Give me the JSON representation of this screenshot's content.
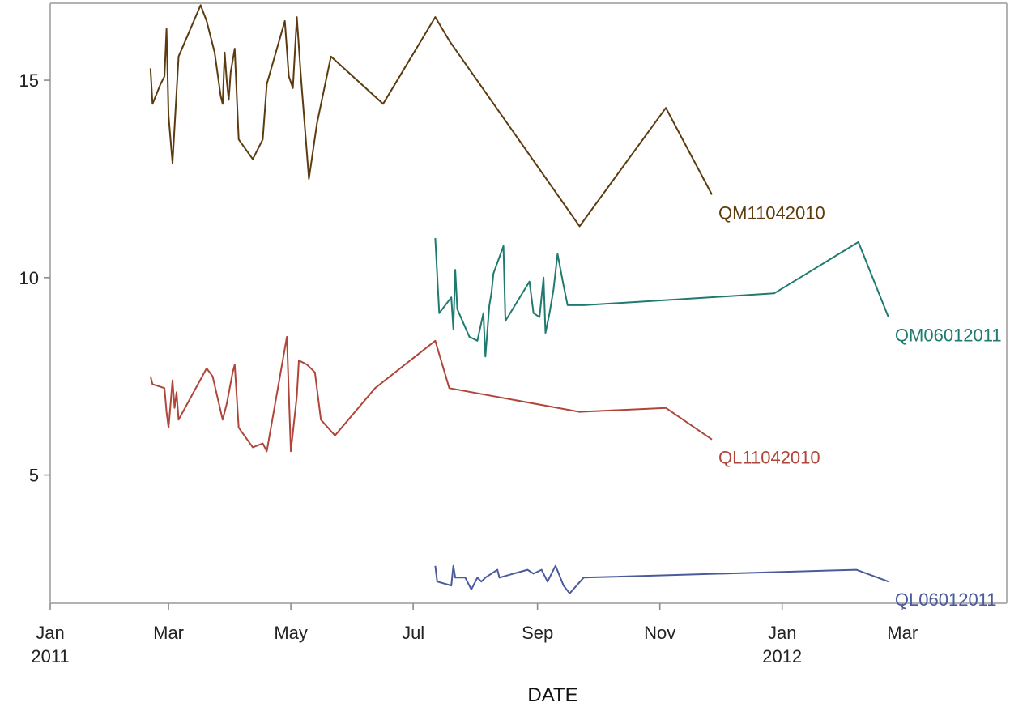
{
  "chart_data": {
    "type": "line",
    "title": "",
    "xlabel": "DATE",
    "ylabel": "",
    "xlim": [
      "2011-01-01",
      "2012-04-22"
    ],
    "ylim": [
      1.75,
      16.95
    ],
    "grid": false,
    "legend": "curve labels at line ends",
    "x_ticks": [
      {
        "date": "2011-01-01",
        "label": "Jan",
        "sublabel": "2011"
      },
      {
        "date": "2011-03-01",
        "label": "Mar",
        "sublabel": ""
      },
      {
        "date": "2011-05-01",
        "label": "May",
        "sublabel": ""
      },
      {
        "date": "2011-07-01",
        "label": "Jul",
        "sublabel": ""
      },
      {
        "date": "2011-09-01",
        "label": "Sep",
        "sublabel": ""
      },
      {
        "date": "2011-11-01",
        "label": "Nov",
        "sublabel": ""
      },
      {
        "date": "2012-01-01",
        "label": "Jan",
        "sublabel": "2012"
      },
      {
        "date": "2012-03-01",
        "label": "Mar",
        "sublabel": ""
      }
    ],
    "y_ticks": [
      {
        "value": 5,
        "label": "5"
      },
      {
        "value": 10,
        "label": "10"
      },
      {
        "value": 15,
        "label": "15"
      }
    ],
    "series": [
      {
        "name": "QM11042010",
        "color": "#5c3b0f",
        "points": [
          [
            "2011-02-20",
            15.3
          ],
          [
            "2011-02-21",
            14.4
          ],
          [
            "2011-02-25",
            14.9
          ],
          [
            "2011-02-27",
            15.1
          ],
          [
            "2011-02-28",
            16.3
          ],
          [
            "2011-03-01",
            14.1
          ],
          [
            "2011-03-03",
            12.9
          ],
          [
            "2011-03-06",
            15.6
          ],
          [
            "2011-03-17",
            16.9
          ],
          [
            "2011-03-20",
            16.5
          ],
          [
            "2011-03-24",
            15.7
          ],
          [
            "2011-03-27",
            14.6
          ],
          [
            "2011-03-28",
            14.4
          ],
          [
            "2011-03-29",
            15.7
          ],
          [
            "2011-03-30",
            15.0
          ],
          [
            "2011-03-31",
            14.5
          ],
          [
            "2011-04-01",
            15.2
          ],
          [
            "2011-04-03",
            15.8
          ],
          [
            "2011-04-05",
            13.5
          ],
          [
            "2011-04-12",
            13.0
          ],
          [
            "2011-04-17",
            13.5
          ],
          [
            "2011-04-19",
            14.9
          ],
          [
            "2011-04-28",
            16.5
          ],
          [
            "2011-04-30",
            15.1
          ],
          [
            "2011-05-02",
            14.8
          ],
          [
            "2011-05-04",
            16.6
          ],
          [
            "2011-05-06",
            15.1
          ],
          [
            "2011-05-10",
            12.5
          ],
          [
            "2011-05-14",
            13.9
          ],
          [
            "2011-05-21",
            15.6
          ],
          [
            "2011-06-16",
            14.4
          ],
          [
            "2011-07-12",
            16.6
          ],
          [
            "2011-07-19",
            16.0
          ],
          [
            "2011-09-22",
            11.3
          ],
          [
            "2011-11-04",
            14.3
          ],
          [
            "2011-11-27",
            12.1
          ]
        ]
      },
      {
        "name": "QM06012011",
        "color": "#1f7b6f",
        "points": [
          [
            "2011-07-12",
            11.0
          ],
          [
            "2011-07-14",
            9.1
          ],
          [
            "2011-07-20",
            9.5
          ],
          [
            "2011-07-21",
            8.7
          ],
          [
            "2011-07-22",
            10.2
          ],
          [
            "2011-07-23",
            9.2
          ],
          [
            "2011-07-29",
            8.5
          ],
          [
            "2011-08-02",
            8.4
          ],
          [
            "2011-08-05",
            9.1
          ],
          [
            "2011-08-06",
            8.0
          ],
          [
            "2011-08-08",
            9.3
          ],
          [
            "2011-08-09",
            9.6
          ],
          [
            "2011-08-10",
            10.1
          ],
          [
            "2011-08-15",
            10.8
          ],
          [
            "2011-08-16",
            8.9
          ],
          [
            "2011-08-28",
            9.9
          ],
          [
            "2011-08-30",
            9.1
          ],
          [
            "2011-09-02",
            9.0
          ],
          [
            "2011-09-04",
            10.0
          ],
          [
            "2011-09-05",
            8.6
          ],
          [
            "2011-09-07",
            9.1
          ],
          [
            "2011-09-09",
            9.7
          ],
          [
            "2011-09-11",
            10.6
          ],
          [
            "2011-09-14",
            9.8
          ],
          [
            "2011-09-16",
            9.3
          ],
          [
            "2011-09-24",
            9.3
          ],
          [
            "2011-12-28",
            9.6
          ],
          [
            "2012-02-08",
            10.9
          ],
          [
            "2012-02-23",
            9.0
          ]
        ]
      },
      {
        "name": "QL11042010",
        "color": "#b0463a",
        "points": [
          [
            "2011-02-20",
            7.5
          ],
          [
            "2011-02-21",
            7.3
          ],
          [
            "2011-02-27",
            7.2
          ],
          [
            "2011-02-28",
            6.6
          ],
          [
            "2011-02-29",
            6.2
          ],
          [
            "2011-03-02",
            6.8
          ],
          [
            "2011-03-03",
            7.4
          ],
          [
            "2011-03-04",
            6.7
          ],
          [
            "2011-03-05",
            7.1
          ],
          [
            "2011-03-06",
            6.4
          ],
          [
            "2011-03-20",
            7.7
          ],
          [
            "2011-03-23",
            7.5
          ],
          [
            "2011-03-28",
            6.4
          ],
          [
            "2011-03-30",
            6.8
          ],
          [
            "2011-04-02",
            7.6
          ],
          [
            "2011-04-03",
            7.8
          ],
          [
            "2011-04-05",
            6.2
          ],
          [
            "2011-04-12",
            5.7
          ],
          [
            "2011-04-17",
            5.8
          ],
          [
            "2011-04-19",
            5.6
          ],
          [
            "2011-04-29",
            8.5
          ],
          [
            "2011-05-01",
            5.6
          ],
          [
            "2011-05-04",
            7.0
          ],
          [
            "2011-05-05",
            7.9
          ],
          [
            "2011-05-09",
            7.8
          ],
          [
            "2011-05-13",
            7.6
          ],
          [
            "2011-05-16",
            6.4
          ],
          [
            "2011-05-23",
            6.0
          ],
          [
            "2011-06-12",
            7.2
          ],
          [
            "2011-07-12",
            8.4
          ],
          [
            "2011-07-19",
            7.2
          ],
          [
            "2011-09-22",
            6.6
          ],
          [
            "2011-11-04",
            6.7
          ],
          [
            "2011-11-27",
            5.9
          ]
        ]
      },
      {
        "name": "QL06012011",
        "color": "#4a5a9c",
        "points": [
          [
            "2011-07-12",
            2.7
          ],
          [
            "2011-07-13",
            2.3
          ],
          [
            "2011-07-20",
            2.2
          ],
          [
            "2011-07-21",
            2.7
          ],
          [
            "2011-07-22",
            2.4
          ],
          [
            "2011-07-27",
            2.4
          ],
          [
            "2011-07-30",
            2.1
          ],
          [
            "2011-08-02",
            2.4
          ],
          [
            "2011-08-04",
            2.3
          ],
          [
            "2011-08-06",
            2.4
          ],
          [
            "2011-08-09",
            2.5
          ],
          [
            "2011-08-12",
            2.6
          ],
          [
            "2011-08-13",
            2.4
          ],
          [
            "2011-08-27",
            2.6
          ],
          [
            "2011-08-30",
            2.5
          ],
          [
            "2011-09-03",
            2.6
          ],
          [
            "2011-09-06",
            2.3
          ],
          [
            "2011-09-10",
            2.7
          ],
          [
            "2011-09-14",
            2.2
          ],
          [
            "2011-09-17",
            2.0
          ],
          [
            "2011-09-24",
            2.4
          ],
          [
            "2012-02-07",
            2.6
          ],
          [
            "2012-02-23",
            2.3
          ]
        ]
      }
    ]
  }
}
